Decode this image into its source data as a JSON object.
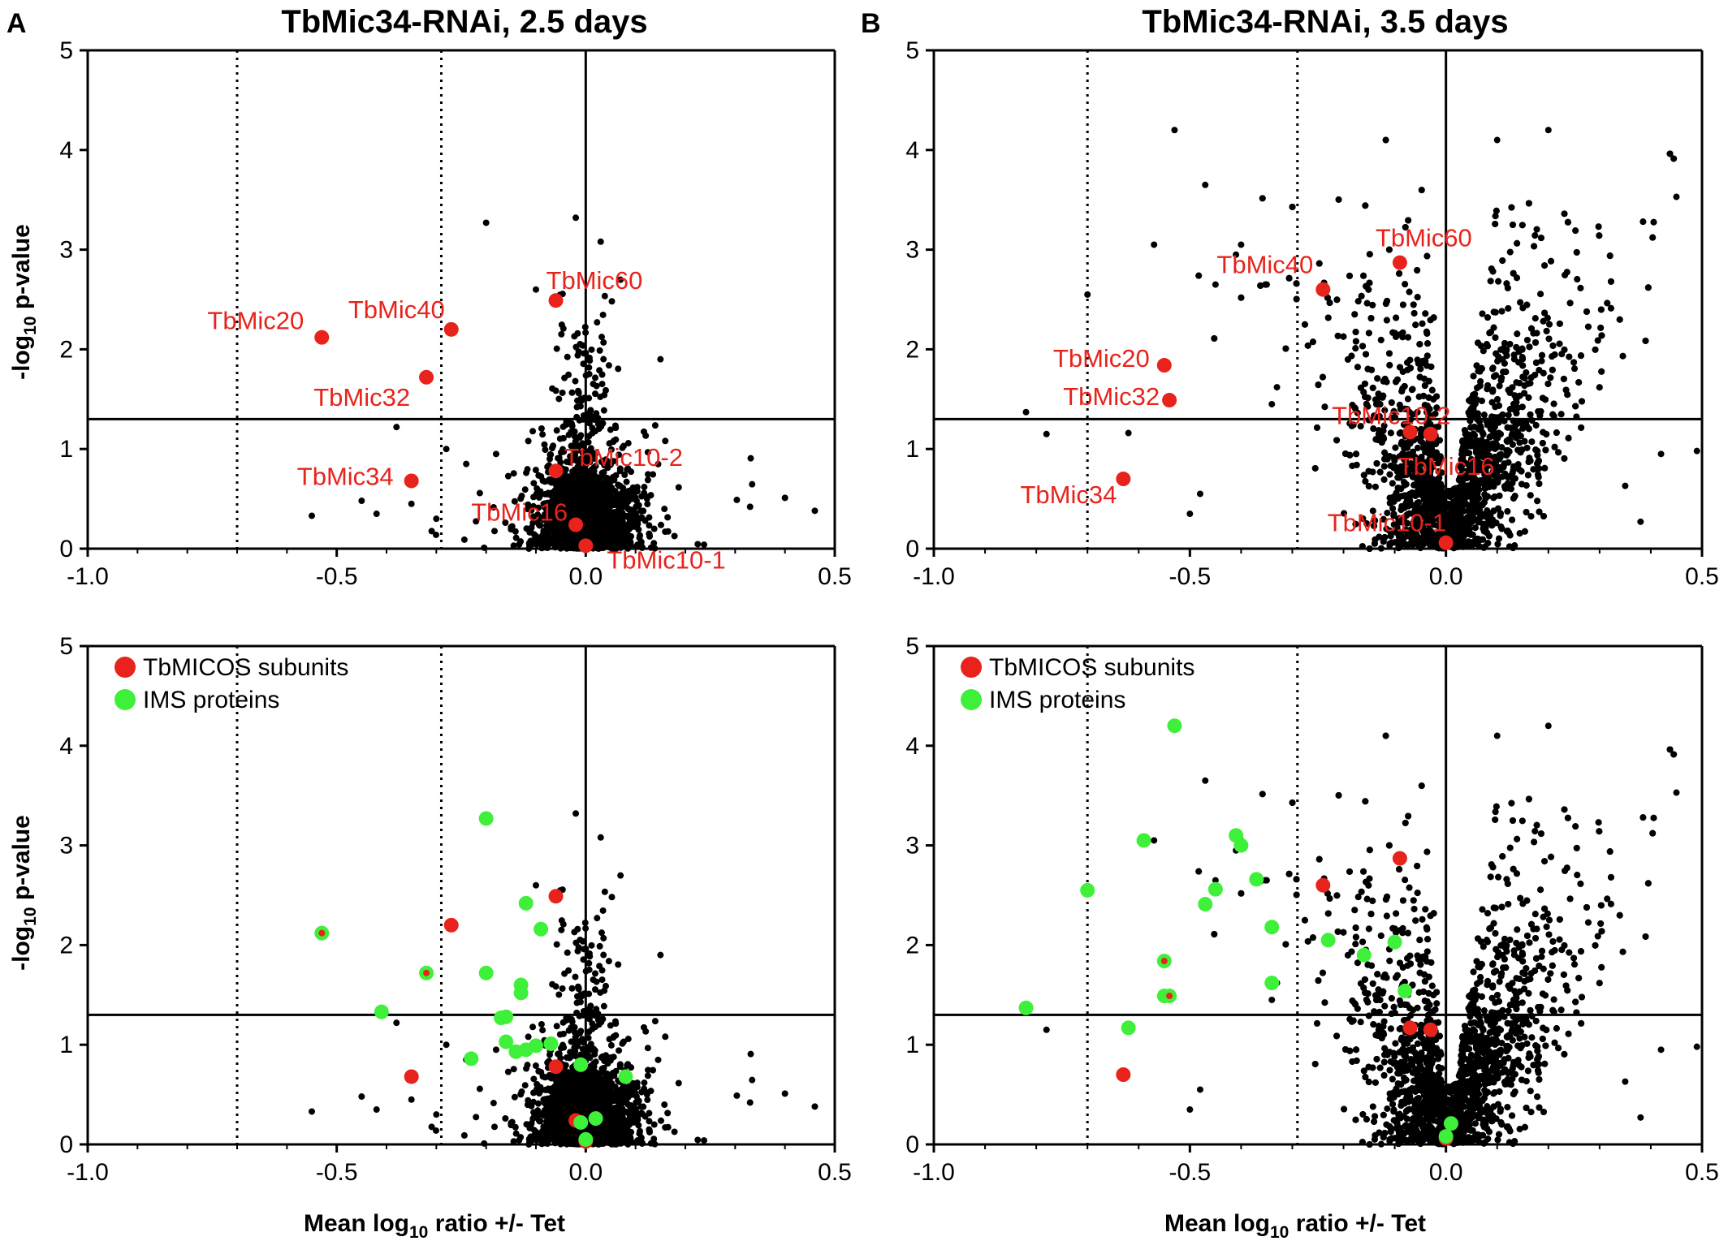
{
  "figure": {
    "panels": [
      {
        "letter": "A",
        "title": "TbMic34-RNAi, 2.5 days"
      },
      {
        "letter": "B",
        "title": "TbMic34-RNAi, 3.5 days"
      }
    ],
    "y_axis_label": "-log10 p-value",
    "x_axis_label": "Mean log10 ratio +/- Tet",
    "legend": [
      {
        "label": "TbMICOS subunits",
        "color": "#e8231b"
      },
      {
        "label": "IMS proteins",
        "color": "#3ff03a"
      }
    ],
    "colors": {
      "micos": "#e8231b",
      "ims": "#3ff03a",
      "background": "#000000"
    }
  },
  "chart_data": [
    {
      "type": "scatter",
      "panel": "A-top",
      "title": "TbMic34-RNAi, 2.5 days",
      "xlabel": "",
      "ylabel": "-log10 p-value",
      "xlim": [
        -1.0,
        0.5
      ],
      "ylim": [
        0,
        5
      ],
      "xticks": [
        "-1.0",
        "-0.5",
        "0.0",
        "0.5"
      ],
      "yticks": [
        "0",
        "1",
        "2",
        "3",
        "4",
        "5"
      ],
      "reference_lines": {
        "horizontal_solid": 1.3,
        "vertical_solid": 0.0,
        "vertical_dotted": [
          -0.7,
          -0.29
        ]
      },
      "background_density": {
        "center_x": 0.0,
        "center_y": 0.2,
        "description": "approx. 1800 black points clustered around x=0"
      },
      "background_extra": [
        [
          -0.2,
          3.27
        ],
        [
          -0.1,
          2.6
        ],
        [
          -0.55,
          0.33
        ],
        [
          -0.45,
          0.48
        ],
        [
          -0.35,
          0.45
        ],
        [
          -0.3,
          0.3
        ],
        [
          -0.42,
          0.35
        ],
        [
          0.33,
          0.42
        ],
        [
          0.4,
          0.51
        ],
        [
          0.46,
          0.38
        ],
        [
          -0.38,
          1.22
        ],
        [
          -0.28,
          1.0
        ],
        [
          0.03,
          3.08
        ],
        [
          -0.02,
          3.32
        ],
        [
          0.15,
          1.9
        ],
        [
          -0.24,
          0.85
        ],
        [
          -0.18,
          0.95
        ]
      ],
      "series": [
        {
          "name": "TbMICOS subunits",
          "points": [
            {
              "label": "TbMic20",
              "x": -0.53,
              "y": 2.12
            },
            {
              "label": "TbMic40",
              "x": -0.27,
              "y": 2.2
            },
            {
              "label": "TbMic60",
              "x": -0.06,
              "y": 2.49
            },
            {
              "label": "TbMic32",
              "x": -0.32,
              "y": 1.72
            },
            {
              "label": "TbMic34",
              "x": -0.35,
              "y": 0.68
            },
            {
              "label": "TbMic10-2",
              "x": -0.06,
              "y": 0.78
            },
            {
              "label": "TbMic16",
              "x": -0.02,
              "y": 0.24
            },
            {
              "label": "TbMic10-1",
              "x": 0.0,
              "y": 0.03
            }
          ]
        }
      ]
    },
    {
      "type": "scatter",
      "panel": "B-top",
      "title": "TbMic34-RNAi, 3.5 days",
      "xlabel": "",
      "ylabel": "",
      "xlim": [
        -1.0,
        0.5
      ],
      "ylim": [
        0,
        5
      ],
      "xticks": [
        "-1.0",
        "-0.5",
        "0.0",
        "0.5"
      ],
      "yticks": [
        "0",
        "1",
        "2",
        "3",
        "4",
        "5"
      ],
      "reference_lines": {
        "horizontal_solid": 1.3,
        "vertical_solid": 0.0,
        "vertical_dotted": [
          -0.7,
          -0.29
        ]
      },
      "background_density": {
        "center_x": 0.05,
        "center_y": 1.3,
        "description": "approx. 3500 black points, broad V-shaped cloud"
      },
      "background_extra": [
        [
          -0.53,
          4.2
        ],
        [
          -0.47,
          3.65
        ],
        [
          -0.4,
          3.05
        ],
        [
          -0.57,
          3.05
        ],
        [
          -0.7,
          2.55
        ],
        [
          -0.82,
          1.37
        ],
        [
          -0.78,
          1.15
        ],
        [
          -0.62,
          1.16
        ],
        [
          -0.48,
          0.55
        ],
        [
          -0.5,
          0.35
        ],
        [
          -0.34,
          1.45
        ],
        [
          0.45,
          3.53
        ],
        [
          0.49,
          0.98
        ],
        [
          0.38,
          0.27
        ],
        [
          0.35,
          0.63
        ],
        [
          0.42,
          0.95
        ],
        [
          -0.45,
          2.65
        ],
        [
          -0.35,
          2.65
        ],
        [
          -0.33,
          1.62
        ],
        [
          -0.41,
          2.95
        ],
        [
          0.2,
          4.2
        ],
        [
          0.1,
          4.1
        ]
      ],
      "series": [
        {
          "name": "TbMICOS subunits",
          "points": [
            {
              "label": "TbMic60",
              "x": -0.09,
              "y": 2.87
            },
            {
              "label": "TbMic40",
              "x": -0.24,
              "y": 2.6
            },
            {
              "label": "TbMic20",
              "x": -0.55,
              "y": 1.84
            },
            {
              "label": "TbMic32",
              "x": -0.54,
              "y": 1.49
            },
            {
              "label": "TbMic10-2",
              "x": -0.07,
              "y": 1.17
            },
            {
              "label": "TbMic16",
              "x": -0.03,
              "y": 1.15
            },
            {
              "label": "TbMic34",
              "x": -0.63,
              "y": 0.7
            },
            {
              "label": "TbMic10-1",
              "x": 0.0,
              "y": 0.06
            }
          ]
        }
      ]
    },
    {
      "type": "scatter",
      "panel": "A-bottom",
      "title": "",
      "xlabel": "Mean log10 ratio +/- Tet",
      "ylabel": "-log10 p-value",
      "xlim": [
        -1.0,
        0.5
      ],
      "ylim": [
        0,
        5
      ],
      "xticks": [
        "-1.0",
        "-0.5",
        "0.0",
        "0.5"
      ],
      "yticks": [
        "0",
        "1",
        "2",
        "3",
        "4",
        "5"
      ],
      "reference_lines": {
        "horizontal_solid": 1.3,
        "vertical_solid": 0.0,
        "vertical_dotted": [
          -0.7,
          -0.29
        ]
      },
      "background_density": {
        "center_x": 0.0,
        "center_y": 0.2,
        "description": "same background as panel A-top"
      },
      "legend_position": "top-left",
      "series": [
        {
          "name": "TbMICOS subunits",
          "color": "#e8231b",
          "points": [
            [
              -0.27,
              2.2
            ],
            [
              -0.06,
              2.49
            ],
            [
              -0.35,
              0.68
            ],
            [
              -0.06,
              0.78
            ],
            [
              -0.02,
              0.24
            ],
            [
              0.0,
              0.03
            ]
          ]
        },
        {
          "name": "IMS proteins",
          "color": "#3ff03a",
          "points": [
            [
              -0.2,
              3.27
            ],
            [
              -0.12,
              2.42
            ],
            [
              -0.09,
              2.16
            ],
            [
              -0.2,
              1.72
            ],
            [
              -0.13,
              1.6
            ],
            [
              -0.13,
              1.52
            ],
            [
              -0.41,
              1.33
            ],
            [
              -0.17,
              1.27
            ],
            [
              -0.16,
              1.28
            ],
            [
              -0.16,
              1.03
            ],
            [
              -0.1,
              0.99
            ],
            [
              -0.07,
              1.01
            ],
            [
              -0.14,
              0.93
            ],
            [
              -0.12,
              0.95
            ],
            [
              -0.23,
              0.86
            ],
            [
              -0.01,
              0.8
            ],
            [
              0.08,
              0.68
            ],
            [
              0.02,
              0.26
            ],
            [
              -0.01,
              0.22
            ],
            [
              0.0,
              0.05
            ]
          ]
        },
        {
          "name": "IMS proteins (also TbMICOS)",
          "points": [
            [
              -0.53,
              2.12
            ],
            [
              -0.32,
              1.72
            ]
          ]
        }
      ]
    },
    {
      "type": "scatter",
      "panel": "B-bottom",
      "title": "",
      "xlabel": "Mean log10 ratio +/- Tet",
      "ylabel": "",
      "xlim": [
        -1.0,
        0.5
      ],
      "ylim": [
        0,
        5
      ],
      "xticks": [
        "-1.0",
        "-0.5",
        "0.0",
        "0.5"
      ],
      "yticks": [
        "0",
        "1",
        "2",
        "3",
        "4",
        "5"
      ],
      "reference_lines": {
        "horizontal_solid": 1.3,
        "vertical_solid": 0.0,
        "vertical_dotted": [
          -0.7,
          -0.29
        ]
      },
      "background_density": {
        "center_x": 0.05,
        "center_y": 1.3,
        "description": "same background as panel B-top"
      },
      "legend_position": "top-left",
      "series": [
        {
          "name": "TbMICOS subunits",
          "color": "#e8231b",
          "points": [
            [
              -0.09,
              2.87
            ],
            [
              -0.24,
              2.6
            ],
            [
              -0.07,
              1.17
            ],
            [
              -0.03,
              1.15
            ],
            [
              -0.63,
              0.7
            ],
            [
              0.0,
              0.06
            ]
          ]
        },
        {
          "name": "IMS proteins",
          "color": "#3ff03a",
          "points": [
            [
              -0.53,
              4.2
            ],
            [
              -0.41,
              3.1
            ],
            [
              -0.4,
              3.0
            ],
            [
              -0.59,
              3.05
            ],
            [
              -0.7,
              2.55
            ],
            [
              -0.37,
              2.66
            ],
            [
              -0.45,
              2.56
            ],
            [
              -0.47,
              2.41
            ],
            [
              -0.34,
              2.18
            ],
            [
              -0.23,
              2.05
            ],
            [
              -0.1,
              2.03
            ],
            [
              -0.16,
              1.9
            ],
            [
              -0.34,
              1.62
            ],
            [
              -0.08,
              1.54
            ],
            [
              -0.82,
              1.37
            ],
            [
              -0.55,
              1.49
            ],
            [
              -0.62,
              1.17
            ],
            [
              0.01,
              0.21
            ],
            [
              0.0,
              0.08
            ]
          ]
        },
        {
          "name": "IMS proteins (also TbMICOS)",
          "points": [
            [
              -0.55,
              1.84
            ],
            [
              -0.54,
              1.49
            ]
          ]
        }
      ]
    }
  ]
}
